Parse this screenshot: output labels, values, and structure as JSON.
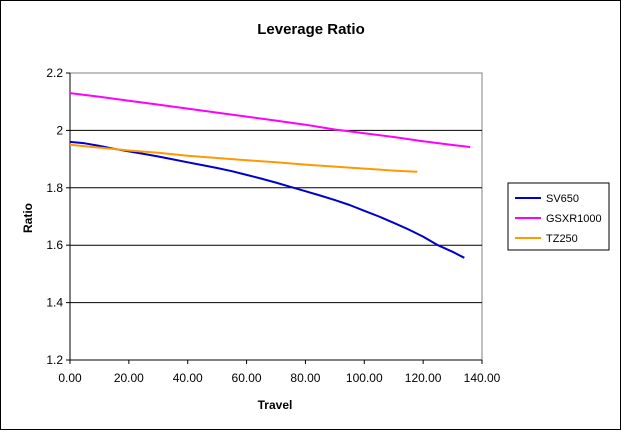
{
  "chart_data": {
    "type": "line",
    "title": "Leverage Ratio",
    "xlabel": "Travel",
    "ylabel": "Ratio",
    "xlim": [
      0,
      140
    ],
    "ylim": [
      1.2,
      2.2
    ],
    "x_ticks": [
      "0.00",
      "20.00",
      "40.00",
      "60.00",
      "80.00",
      "100.00",
      "120.00",
      "140.00"
    ],
    "y_ticks": [
      "1.2",
      "1.4",
      "1.6",
      "1.8",
      "2",
      "2.2"
    ],
    "grid": "horizontal major gridlines",
    "legend_position": "right",
    "series": [
      {
        "name": "SV650",
        "color": "#0000CC",
        "x": [
          0,
          5,
          10,
          15,
          20,
          25,
          30,
          35,
          40,
          45,
          50,
          55,
          60,
          65,
          70,
          75,
          80,
          85,
          90,
          95,
          100,
          105,
          110,
          115,
          120,
          125,
          130,
          134
        ],
        "y": [
          1.96,
          1.955,
          1.946,
          1.936,
          1.927,
          1.918,
          1.909,
          1.899,
          1.889,
          1.879,
          1.869,
          1.858,
          1.845,
          1.832,
          1.818,
          1.803,
          1.788,
          1.773,
          1.757,
          1.74,
          1.72,
          1.7,
          1.678,
          1.655,
          1.63,
          1.6,
          1.577,
          1.556
        ]
      },
      {
        "name": "GSXR1000",
        "color": "#FF00FF",
        "x": [
          0,
          10,
          20,
          30,
          40,
          50,
          60,
          70,
          80,
          90,
          100,
          110,
          120,
          130,
          136
        ],
        "y": [
          2.13,
          2.117,
          2.103,
          2.09,
          2.076,
          2.062,
          2.048,
          2.034,
          2.02,
          2.003,
          1.99,
          1.977,
          1.962,
          1.949,
          1.942
        ]
      },
      {
        "name": "TZ250",
        "color": "#FF9900",
        "x": [
          0,
          10,
          20,
          30,
          40,
          50,
          60,
          70,
          80,
          90,
          100,
          110,
          118
        ],
        "y": [
          1.95,
          1.94,
          1.93,
          1.922,
          1.912,
          1.904,
          1.896,
          1.889,
          1.881,
          1.874,
          1.867,
          1.86,
          1.856
        ]
      }
    ]
  }
}
